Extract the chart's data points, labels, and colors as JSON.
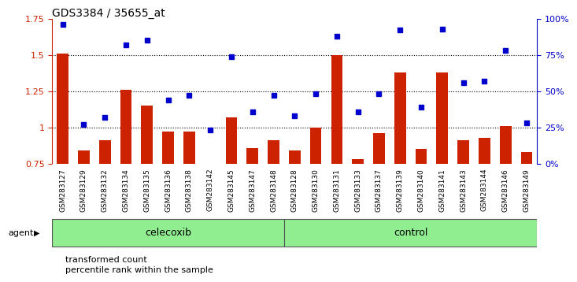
{
  "title": "GDS3384 / 35655_at",
  "samples": [
    "GSM283127",
    "GSM283129",
    "GSM283132",
    "GSM283134",
    "GSM283135",
    "GSM283136",
    "GSM283138",
    "GSM283142",
    "GSM283145",
    "GSM283147",
    "GSM283148",
    "GSM283128",
    "GSM283130",
    "GSM283131",
    "GSM283133",
    "GSM283137",
    "GSM283139",
    "GSM283140",
    "GSM283141",
    "GSM283143",
    "GSM283144",
    "GSM283146",
    "GSM283149"
  ],
  "bar_values": [
    1.51,
    0.84,
    0.91,
    1.26,
    1.15,
    0.97,
    0.97,
    0.75,
    1.07,
    0.86,
    0.91,
    0.84,
    1.0,
    1.5,
    0.78,
    0.96,
    1.38,
    0.85,
    1.38,
    0.91,
    0.93,
    1.01,
    0.83
  ],
  "dot_values": [
    96,
    27,
    32,
    82,
    85,
    44,
    47,
    23,
    74,
    36,
    47,
    33,
    48,
    88,
    36,
    48,
    92,
    39,
    93,
    56,
    57,
    78,
    28
  ],
  "celecoxib_count": 11,
  "control_count": 12,
  "ylim_left": [
    0.75,
    1.75
  ],
  "ylim_right": [
    0,
    100
  ],
  "yticks_left": [
    0.75,
    1.0,
    1.25,
    1.5,
    1.75
  ],
  "ytick_labels_left": [
    "0.75",
    "1",
    "1.25",
    "1.5",
    "1.75"
  ],
  "yticks_right": [
    0,
    25,
    50,
    75,
    100
  ],
  "ytick_labels_right": [
    "0%",
    "25%",
    "50%",
    "75%",
    "100%"
  ],
  "bar_color": "#cc2200",
  "dot_color": "#0000cc",
  "group_color": "#90ee90",
  "agent_label": "agent",
  "celecoxib_label": "celecoxib",
  "control_label": "control",
  "legend_bar_label": "transformed count",
  "legend_dot_label": "percentile rank within the sample",
  "tick_bg_color": "#c8c8c8",
  "hgrid_values": [
    1.0,
    1.25,
    1.5
  ]
}
